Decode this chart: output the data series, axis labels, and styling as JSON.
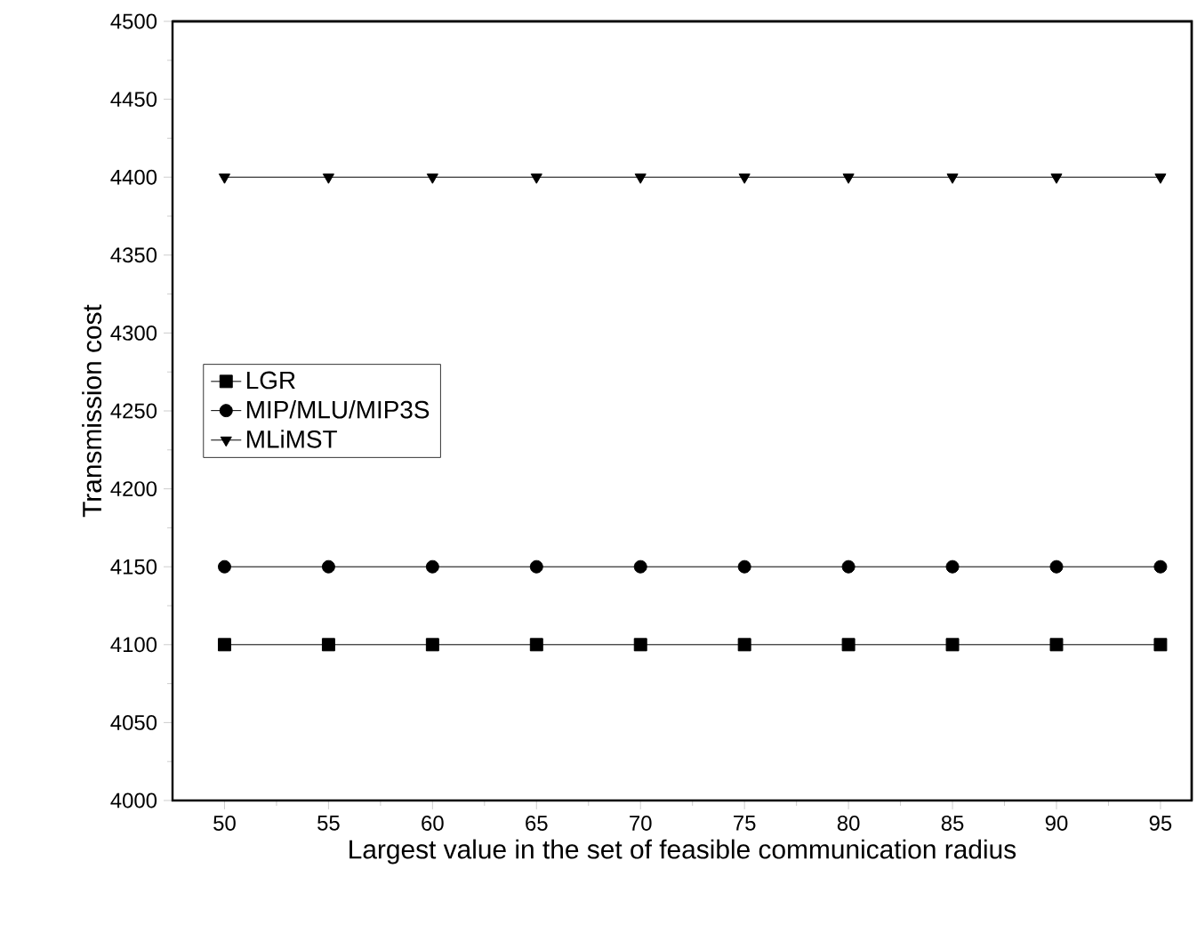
{
  "chart_data": {
    "type": "line",
    "xlabel": "Largest value in the set of feasible communication radius",
    "ylabel": "Transmission cost",
    "x": [
      50,
      55,
      60,
      65,
      70,
      75,
      80,
      85,
      90,
      95
    ],
    "series": [
      {
        "name": "LGR",
        "color": "#000000",
        "marker": "square",
        "values": [
          4100,
          4100,
          4100,
          4100,
          4100,
          4100,
          4100,
          4100,
          4100,
          4100
        ]
      },
      {
        "name": "MIP/MLU/MIP3S",
        "color": "#000000",
        "marker": "circle",
        "values": [
          4150,
          4150,
          4150,
          4150,
          4150,
          4150,
          4150,
          4150,
          4150,
          4150
        ]
      },
      {
        "name": "MLiMST",
        "color": "#000000",
        "marker": "triangle",
        "values": [
          4400,
          4400,
          4400,
          4400,
          4400,
          4400,
          4400,
          4400,
          4400,
          4400
        ]
      }
    ],
    "xlim": [
      47.5,
      96.5
    ],
    "ylim": [
      4000,
      4500
    ],
    "xticks": [
      50,
      55,
      60,
      65,
      70,
      75,
      80,
      85,
      90,
      95
    ],
    "yticks": [
      4000,
      4050,
      4100,
      4150,
      4200,
      4250,
      4300,
      4350,
      4400,
      4450,
      4500
    ],
    "grid": false,
    "legend": "left",
    "line_style": "solid"
  }
}
